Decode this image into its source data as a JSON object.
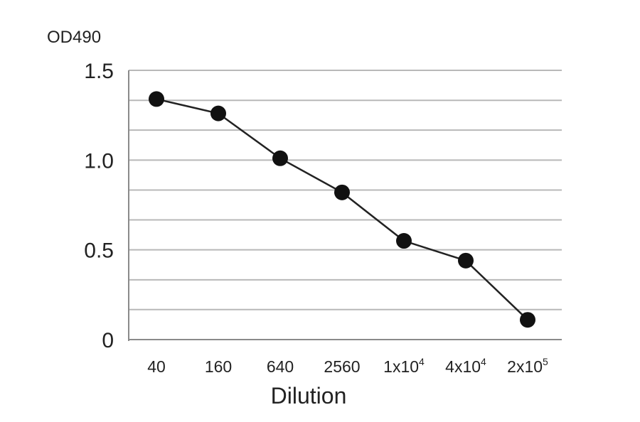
{
  "chart_data": {
    "type": "line",
    "ylabel": "OD490",
    "xlabel": "Dilution",
    "ylim": [
      0,
      1.5
    ],
    "yticks": [
      "1.5",
      "1.0",
      "0.5",
      "0"
    ],
    "ytick_values": [
      1.5,
      1.0,
      0.5,
      0
    ],
    "categories": [
      {
        "base": "40",
        "sup": ""
      },
      {
        "base": "160",
        "sup": ""
      },
      {
        "base": "640",
        "sup": ""
      },
      {
        "base": "2560",
        "sup": ""
      },
      {
        "base": "1x10",
        "sup": "4"
      },
      {
        "base": "4x10",
        "sup": "4"
      },
      {
        "base": "2x10",
        "sup": "5"
      }
    ],
    "values": [
      1.34,
      1.26,
      1.01,
      0.82,
      0.55,
      0.44,
      0.11
    ],
    "grid": true,
    "gridlines_y": [
      0.167,
      0.333,
      0.5,
      0.667,
      0.833,
      1.0,
      1.167,
      1.333,
      1.5
    ],
    "marker_color": "#111111",
    "line_color": "#222222",
    "grid_color": "#b8b8b8"
  }
}
